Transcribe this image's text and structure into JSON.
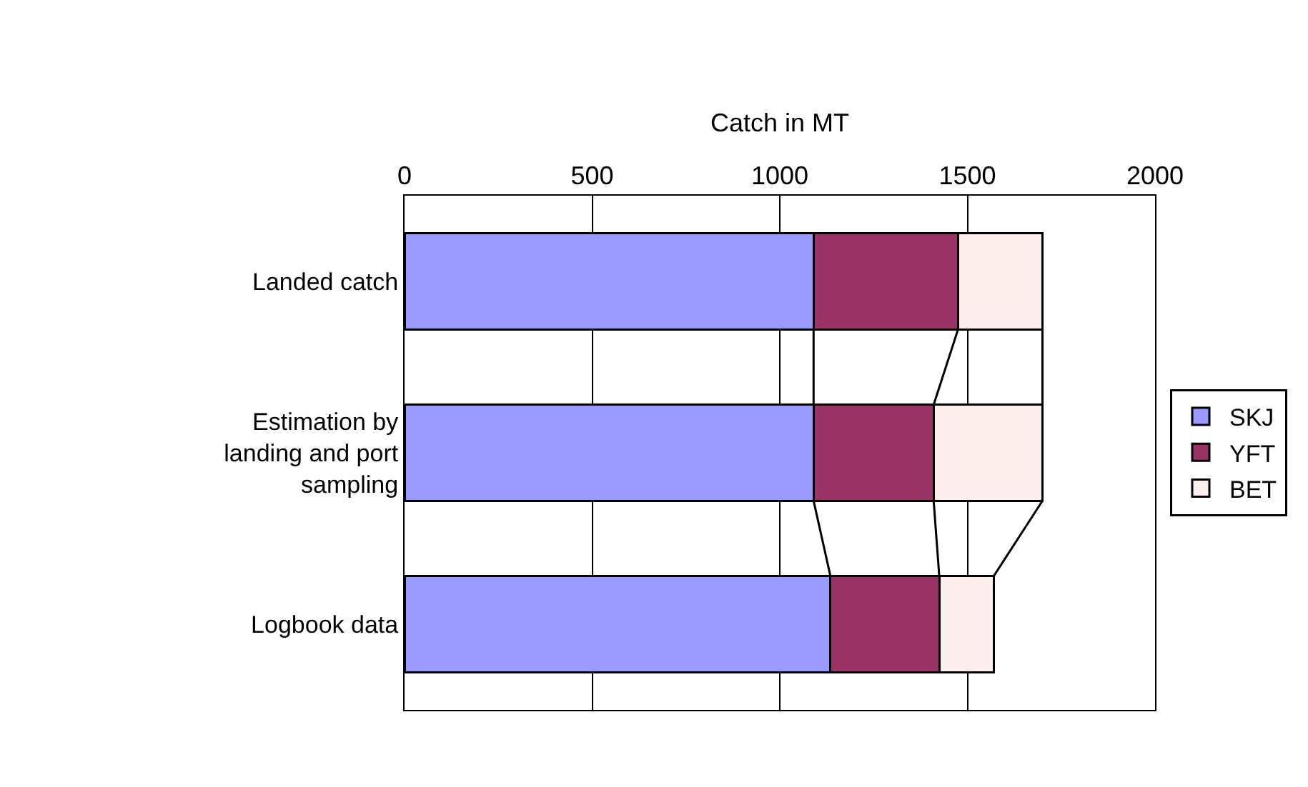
{
  "chart_data": {
    "type": "bar",
    "orientation": "horizontal",
    "stacked": true,
    "xlabel": "Catch in MT",
    "categories": [
      "Landed catch",
      "Estimation by\nlanding and port\nsampling",
      "Logbook data"
    ],
    "series": [
      {
        "name": "SKJ",
        "color": "#9999ff",
        "values": [
          1090,
          1090,
          1135
        ]
      },
      {
        "name": "YFT",
        "color": "#993366",
        "values": [
          385,
          320,
          290
        ]
      },
      {
        "name": "BET",
        "color": "#ffeeee",
        "values": [
          225,
          290,
          145
        ]
      }
    ],
    "xlim": [
      0,
      2000
    ],
    "xticks": [
      0,
      500,
      1000,
      1500,
      2000
    ],
    "grid": "x",
    "legend": "right"
  }
}
